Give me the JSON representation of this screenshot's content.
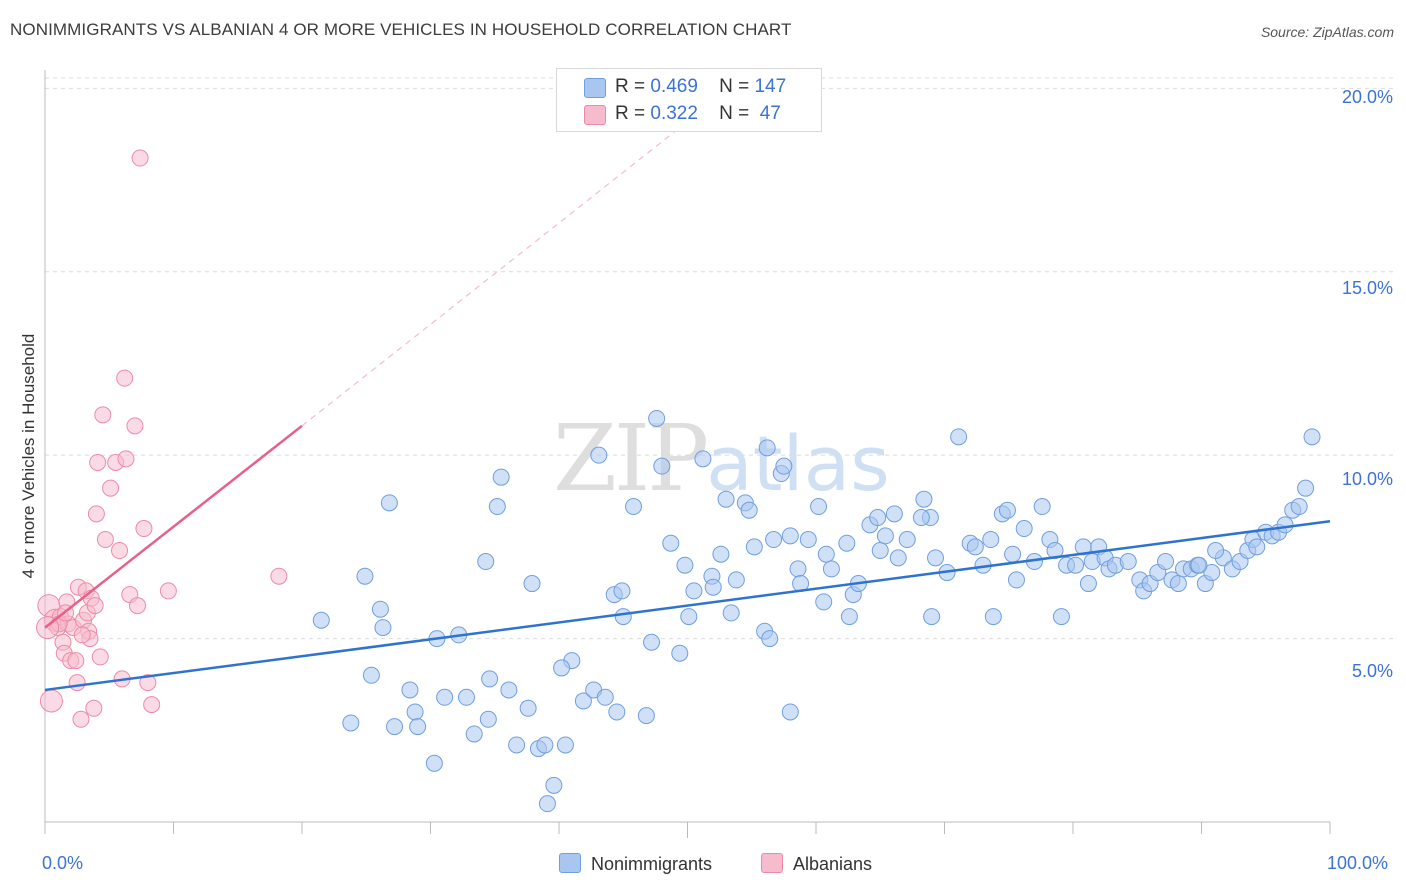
{
  "header": {
    "title": "NONIMMIGRANTS VS ALBANIAN 4 OR MORE VEHICLES IN HOUSEHOLD CORRELATION CHART",
    "source": "Source: ZipAtlas.com"
  },
  "watermark": {
    "zip": "ZIP",
    "atlas": "atlas"
  },
  "legend": {
    "rows": [
      {
        "r_label": "R =",
        "r_value": "0.469",
        "n_label": "N =",
        "n_value": "147",
        "color": "#a9c6f0"
      },
      {
        "r_label": "R =",
        "r_value": "0.322",
        "n_label": "N =",
        "n_value": " 47",
        "color": "#f6b9cb"
      }
    ]
  },
  "colors": {
    "blue_fill": "#a9c6f0",
    "blue_stroke": "#6f9fe0",
    "blue_line": "#2e73d0",
    "pink_fill": "#f6bccd",
    "pink_stroke": "#ee8aa8",
    "pink_line": "#e8608a",
    "grid": "#dcdcdc",
    "axis_text": "#3b72d6"
  },
  "chart_data": {
    "type": "scatter",
    "title": "NONIMMIGRANTS VS ALBANIAN 4 OR MORE VEHICLES IN HOUSEHOLD CORRELATION CHART",
    "xlabel": "",
    "ylabel": "4 or more Vehicles in Household",
    "xlim": [
      0,
      100
    ],
    "ylim": [
      0,
      20.5
    ],
    "x_tick_labels": [
      "0.0%",
      "100.0%"
    ],
    "y_ticks": [
      5,
      10,
      15,
      20
    ],
    "y_tick_labels": [
      "5.0%",
      "10.0%",
      "15.0%",
      "20.0%"
    ],
    "legend_labels": [
      "Nonimmigrants",
      "Albanians"
    ],
    "series": [
      {
        "name": "Nonimmigrants",
        "trend": {
          "x": [
            0,
            100
          ],
          "y": [
            3.6,
            8.2
          ]
        },
        "points": [
          [
            21.5,
            5.5
          ],
          [
            23.8,
            2.7
          ],
          [
            24.9,
            6.7
          ],
          [
            25.4,
            4.0
          ],
          [
            26.1,
            5.8
          ],
          [
            26.3,
            5.3
          ],
          [
            26.8,
            8.7
          ],
          [
            27.2,
            2.6
          ],
          [
            28.4,
            3.6
          ],
          [
            28.8,
            3.0
          ],
          [
            29.0,
            2.6
          ],
          [
            30.3,
            1.6
          ],
          [
            30.5,
            5.0
          ],
          [
            31.1,
            3.4
          ],
          [
            32.2,
            5.1
          ],
          [
            32.8,
            3.4
          ],
          [
            33.4,
            2.4
          ],
          [
            34.3,
            7.1
          ],
          [
            34.6,
            3.9
          ],
          [
            35.2,
            8.6
          ],
          [
            35.5,
            9.4
          ],
          [
            36.1,
            3.6
          ],
          [
            36.7,
            2.1
          ],
          [
            37.6,
            3.1
          ],
          [
            37.9,
            6.5
          ],
          [
            38.4,
            2.0
          ],
          [
            38.9,
            2.1
          ],
          [
            39.1,
            0.5
          ],
          [
            39.6,
            1.0
          ],
          [
            40.5,
            2.1
          ],
          [
            41.0,
            4.4
          ],
          [
            41.9,
            3.3
          ],
          [
            42.7,
            3.6
          ],
          [
            43.1,
            10.0
          ],
          [
            43.6,
            3.4
          ],
          [
            44.3,
            6.2
          ],
          [
            44.5,
            3.0
          ],
          [
            45.0,
            5.6
          ],
          [
            45.8,
            8.6
          ],
          [
            46.8,
            2.9
          ],
          [
            47.2,
            4.9
          ],
          [
            47.6,
            11.0
          ],
          [
            48.0,
            9.7
          ],
          [
            48.7,
            7.6
          ],
          [
            49.4,
            4.6
          ],
          [
            49.8,
            7.0
          ],
          [
            50.1,
            5.6
          ],
          [
            50.5,
            6.3
          ],
          [
            51.2,
            9.9
          ],
          [
            51.9,
            6.7
          ],
          [
            52.0,
            6.4
          ],
          [
            52.6,
            7.3
          ],
          [
            53.0,
            8.8
          ],
          [
            53.4,
            5.7
          ],
          [
            53.8,
            6.6
          ],
          [
            54.5,
            8.7
          ],
          [
            54.8,
            8.5
          ],
          [
            55.2,
            7.5
          ],
          [
            56.0,
            5.2
          ],
          [
            56.2,
            10.2
          ],
          [
            56.7,
            7.7
          ],
          [
            57.3,
            9.5
          ],
          [
            57.5,
            9.7
          ],
          [
            58.0,
            7.8
          ],
          [
            58.6,
            6.9
          ],
          [
            58.8,
            6.5
          ],
          [
            59.4,
            7.7
          ],
          [
            60.2,
            8.6
          ],
          [
            60.6,
            6.0
          ],
          [
            60.8,
            7.3
          ],
          [
            61.2,
            6.9
          ],
          [
            62.4,
            7.6
          ],
          [
            62.9,
            6.2
          ],
          [
            63.3,
            6.5
          ],
          [
            64.2,
            8.1
          ],
          [
            64.8,
            8.3
          ],
          [
            65.0,
            7.4
          ],
          [
            65.4,
            7.8
          ],
          [
            66.1,
            8.4
          ],
          [
            66.4,
            7.2
          ],
          [
            67.1,
            7.7
          ],
          [
            68.4,
            8.8
          ],
          [
            68.9,
            8.3
          ],
          [
            69.0,
            5.6
          ],
          [
            69.3,
            7.2
          ],
          [
            70.2,
            6.8
          ],
          [
            71.1,
            10.5
          ],
          [
            72.0,
            7.6
          ],
          [
            72.4,
            7.5
          ],
          [
            73.0,
            7.0
          ],
          [
            73.6,
            7.7
          ],
          [
            74.5,
            8.4
          ],
          [
            74.9,
            8.5
          ],
          [
            75.3,
            7.3
          ],
          [
            75.6,
            6.6
          ],
          [
            76.2,
            8.0
          ],
          [
            77.0,
            7.1
          ],
          [
            77.6,
            8.6
          ],
          [
            78.2,
            7.7
          ],
          [
            78.6,
            7.4
          ],
          [
            79.1,
            5.6
          ],
          [
            79.5,
            7.0
          ],
          [
            80.2,
            7.0
          ],
          [
            80.8,
            7.5
          ],
          [
            81.2,
            6.5
          ],
          [
            81.5,
            7.1
          ],
          [
            82.0,
            7.5
          ],
          [
            82.5,
            7.2
          ],
          [
            82.8,
            6.9
          ],
          [
            83.3,
            7.0
          ],
          [
            84.3,
            7.1
          ],
          [
            85.2,
            6.6
          ],
          [
            85.5,
            6.3
          ],
          [
            86.0,
            6.5
          ],
          [
            86.6,
            6.8
          ],
          [
            87.2,
            7.1
          ],
          [
            87.7,
            6.6
          ],
          [
            88.2,
            6.5
          ],
          [
            88.6,
            6.9
          ],
          [
            89.2,
            6.9
          ],
          [
            89.7,
            7.0
          ],
          [
            90.3,
            6.5
          ],
          [
            90.8,
            6.8
          ],
          [
            91.7,
            7.2
          ],
          [
            92.4,
            6.9
          ],
          [
            93.0,
            7.1
          ],
          [
            93.6,
            7.4
          ],
          [
            94.0,
            7.7
          ],
          [
            94.3,
            7.5
          ],
          [
            95.0,
            7.9
          ],
          [
            95.5,
            7.8
          ],
          [
            96.0,
            7.9
          ],
          [
            96.5,
            8.1
          ],
          [
            97.1,
            8.5
          ],
          [
            97.6,
            8.6
          ],
          [
            98.1,
            9.1
          ],
          [
            98.6,
            10.5
          ],
          [
            34.5,
            2.8
          ],
          [
            58.0,
            3.0
          ],
          [
            40.2,
            4.2
          ],
          [
            68.2,
            8.3
          ],
          [
            73.8,
            5.6
          ],
          [
            56.4,
            5.0
          ],
          [
            62.6,
            5.6
          ],
          [
            44.9,
            6.3
          ],
          [
            89.8,
            7.0
          ],
          [
            91.1,
            7.4
          ]
        ]
      },
      {
        "name": "Albanians",
        "trend": {
          "x": [
            0,
            20
          ],
          "y": [
            5.3,
            10.8
          ]
        },
        "trend_extension": {
          "x": [
            20,
            54
          ],
          "y": [
            10.8,
            20.2
          ]
        },
        "points": [
          [
            0.3,
            5.9
          ],
          [
            0.5,
            3.3
          ],
          [
            0.8,
            5.5
          ],
          [
            1.0,
            5.3
          ],
          [
            1.2,
            5.6
          ],
          [
            1.4,
            4.9
          ],
          [
            1.5,
            4.6
          ],
          [
            1.7,
            6.0
          ],
          [
            1.8,
            5.4
          ],
          [
            2.0,
            4.4
          ],
          [
            2.2,
            5.3
          ],
          [
            2.4,
            4.4
          ],
          [
            2.5,
            3.8
          ],
          [
            2.6,
            6.4
          ],
          [
            2.8,
            2.8
          ],
          [
            3.0,
            5.5
          ],
          [
            3.2,
            6.3
          ],
          [
            3.3,
            5.7
          ],
          [
            3.4,
            5.2
          ],
          [
            3.5,
            5.0
          ],
          [
            3.6,
            6.1
          ],
          [
            3.8,
            3.1
          ],
          [
            4.0,
            8.4
          ],
          [
            4.1,
            9.8
          ],
          [
            4.3,
            4.5
          ],
          [
            4.5,
            11.1
          ],
          [
            4.7,
            7.7
          ],
          [
            5.1,
            9.1
          ],
          [
            5.5,
            9.8
          ],
          [
            5.8,
            7.4
          ],
          [
            6.0,
            3.9
          ],
          [
            6.2,
            12.1
          ],
          [
            6.3,
            9.9
          ],
          [
            6.6,
            6.2
          ],
          [
            7.2,
            5.9
          ],
          [
            7.0,
            10.8
          ],
          [
            7.7,
            8.0
          ],
          [
            8.0,
            3.8
          ],
          [
            8.3,
            3.2
          ],
          [
            9.6,
            6.3
          ],
          [
            18.2,
            6.7
          ],
          [
            7.4,
            18.1
          ],
          [
            1.1,
            5.4
          ],
          [
            2.9,
            5.1
          ],
          [
            0.2,
            5.3
          ],
          [
            3.9,
            5.9
          ],
          [
            1.6,
            5.7
          ]
        ]
      }
    ]
  }
}
